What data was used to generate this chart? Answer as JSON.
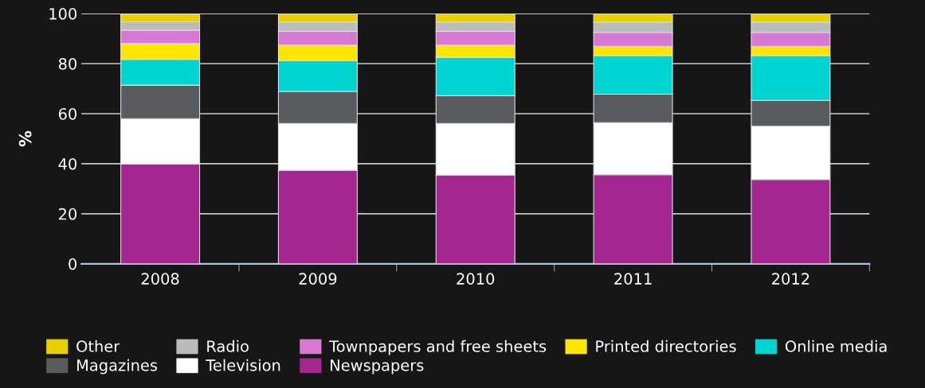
{
  "chart_data": {
    "type": "bar",
    "stacked": true,
    "ylabel": "%",
    "categories": [
      "2008",
      "2009",
      "2010",
      "2011",
      "2012"
    ],
    "ylim": [
      0,
      100
    ],
    "yticks": [
      0,
      20,
      40,
      60,
      80,
      100
    ],
    "grid": "y",
    "legend": "bottom",
    "series": [
      {
        "name": "Newspapers",
        "color": "#a3278f",
        "values": [
          39.9,
          37.4,
          35.5,
          35.6,
          33.7
        ]
      },
      {
        "name": "Television",
        "color": "#ffffff",
        "values": [
          18.1,
          18.7,
          20.6,
          20.8,
          21.3
        ]
      },
      {
        "name": "Magazines",
        "color": "#575b5e",
        "values": [
          13.4,
          12.8,
          11.1,
          11.4,
          10.3
        ]
      },
      {
        "name": "Online media",
        "color": "#00d4d0",
        "values": [
          10.3,
          12.3,
          15.3,
          15.4,
          17.9
        ]
      },
      {
        "name": "Printed directories",
        "color": "#ffe600",
        "values": [
          6.3,
          6.2,
          4.9,
          3.7,
          3.7
        ]
      },
      {
        "name": "Townpapers and free sheets",
        "color": "#d778d4",
        "values": [
          5.4,
          5.5,
          5.5,
          5.6,
          5.6
        ]
      },
      {
        "name": "Radio",
        "color": "#bbbbbb",
        "values": [
          3.3,
          3.7,
          3.7,
          4.1,
          4.1
        ]
      },
      {
        "name": "Other",
        "color": "#e8cf00",
        "values": [
          3.1,
          3.4,
          3.4,
          3.4,
          3.4
        ]
      }
    ]
  }
}
